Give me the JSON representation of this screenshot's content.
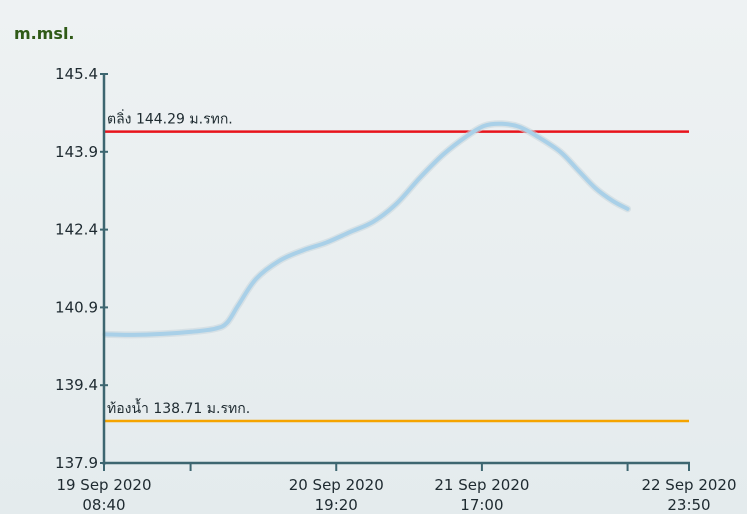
{
  "chart_data": {
    "type": "line",
    "ylabel": "m.msl.",
    "ylim": [
      137.9,
      145.4
    ],
    "y_ticks": [
      "145.4",
      "143.9",
      "142.4",
      "140.9",
      "139.4",
      "137.9"
    ],
    "x_ticks": [
      {
        "line1": "19 Sep 2020",
        "line2": "08:40",
        "t": 0
      },
      {
        "line1": "",
        "line2": "",
        "t": 0.148
      },
      {
        "line1": "20 Sep 2020",
        "line2": "19:20",
        "t": 0.397
      },
      {
        "line1": "21 Sep 2020",
        "line2": "17:00",
        "t": 0.646
      },
      {
        "line1": "",
        "line2": "",
        "t": 0.895
      },
      {
        "line1": "22 Sep 2020",
        "line2": "23:50",
        "t": 1
      }
    ],
    "reference_lines": [
      {
        "label": "ตลิ่ง 144.29 ม.รทก.",
        "value": 144.29,
        "color": "#e8141c"
      },
      {
        "label": "ท้องน้ำ 138.71 ม.รทก.",
        "value": 138.71,
        "color": "#f5a400"
      }
    ],
    "series": [
      {
        "color": "#a9d0e8",
        "points": [
          [
            0.003,
            140.38
          ],
          [
            0.05,
            140.37
          ],
          [
            0.1,
            140.39
          ],
          [
            0.15,
            140.43
          ],
          [
            0.19,
            140.49
          ],
          [
            0.21,
            140.6
          ],
          [
            0.23,
            140.95
          ],
          [
            0.26,
            141.45
          ],
          [
            0.3,
            141.8
          ],
          [
            0.34,
            142.0
          ],
          [
            0.38,
            142.15
          ],
          [
            0.42,
            142.35
          ],
          [
            0.46,
            142.55
          ],
          [
            0.5,
            142.9
          ],
          [
            0.54,
            143.4
          ],
          [
            0.58,
            143.85
          ],
          [
            0.62,
            144.2
          ],
          [
            0.65,
            144.4
          ],
          [
            0.68,
            144.44
          ],
          [
            0.71,
            144.38
          ],
          [
            0.74,
            144.2
          ],
          [
            0.78,
            143.9
          ],
          [
            0.81,
            143.55
          ],
          [
            0.84,
            143.2
          ],
          [
            0.87,
            142.95
          ],
          [
            0.895,
            142.8
          ]
        ]
      }
    ]
  }
}
